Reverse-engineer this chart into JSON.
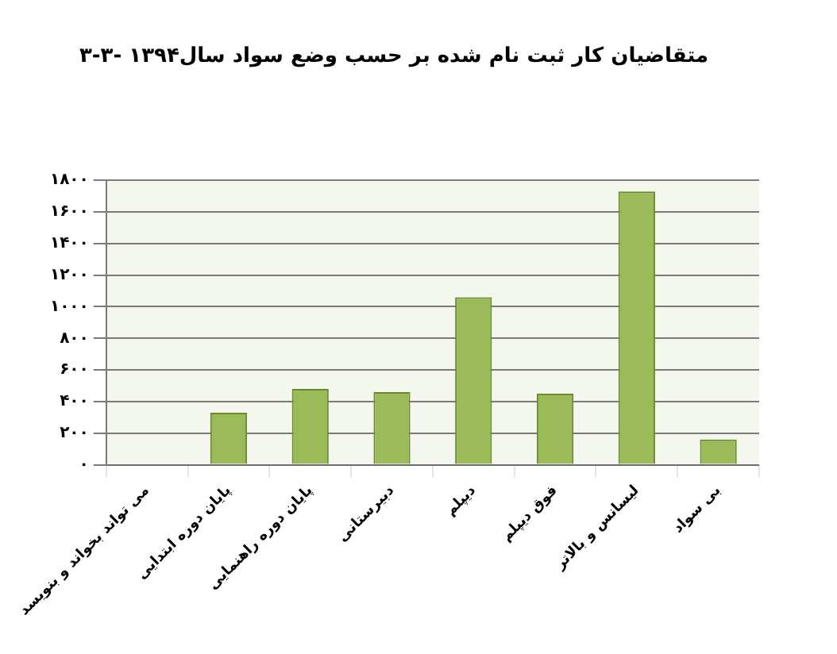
{
  "chart_data": {
    "type": "bar",
    "title": "۳-۳- متقاضیان کار ثبت نام شده بر حسب وضع سواد سال۱۳۹۴",
    "categories": [
      "می تواند بخواند و بنویسد",
      "پایان دوره ابتدایی",
      "پایان دوره راهنمایی",
      "دبیرستانی",
      "دیپلم",
      "فوق دیپلم",
      "لیسانس و بالاتر",
      "بی سواد"
    ],
    "values": [
      0,
      330,
      480,
      460,
      1060,
      450,
      1730,
      160
    ],
    "color": "#9bbb59",
    "ylim": [
      0,
      1800
    ],
    "yticks": [
      {
        "value": 0,
        "label": "۰"
      },
      {
        "value": 200,
        "label": "۲۰۰"
      },
      {
        "value": 400,
        "label": "۴۰۰"
      },
      {
        "value": 600,
        "label": "۶۰۰"
      },
      {
        "value": 800,
        "label": "۸۰۰"
      },
      {
        "value": 1000,
        "label": "۱۰۰۰"
      },
      {
        "value": 1200,
        "label": "۱۲۰۰"
      },
      {
        "value": 1400,
        "label": "۱۴۰۰"
      },
      {
        "value": 1600,
        "label": "۱۶۰۰"
      },
      {
        "value": 1800,
        "label": "۱۸۰۰"
      }
    ],
    "grid": true
  }
}
